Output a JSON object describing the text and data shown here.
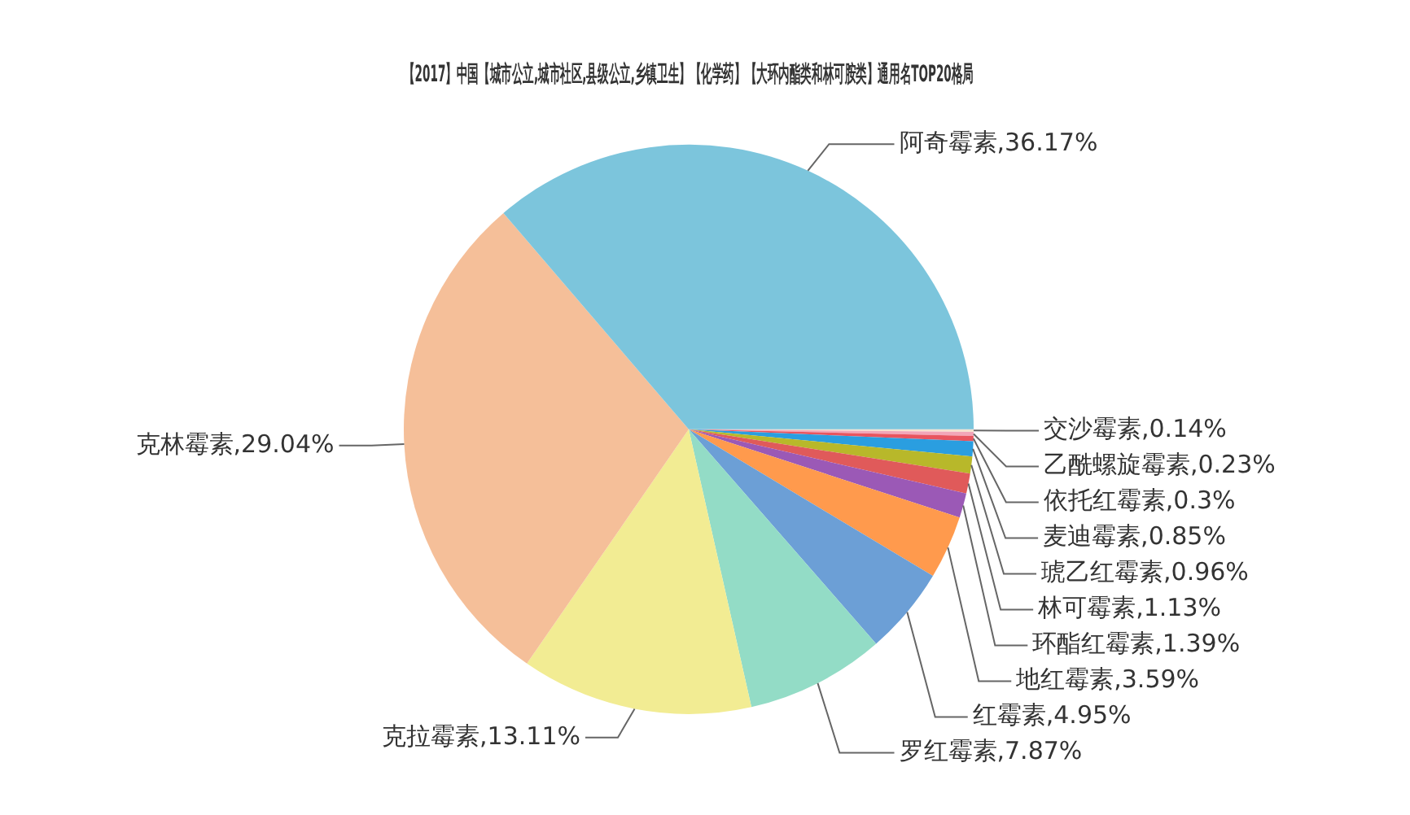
{
  "chart_data": {
    "type": "pie",
    "title": "【2017】中国【城市公立,城市社区,县级公立,乡镇卫生】【化学药】【大环内酯类和林可胺类】通用名TOP20格局",
    "categories": [
      "交沙霉素",
      "乙酰螺旋霉素",
      "依托红霉素",
      "麦迪霉素",
      "琥乙红霉素",
      "林可霉素",
      "环酯红霉素",
      "地红霉素",
      "红霉素",
      "罗红霉素",
      "克拉霉素",
      "克林霉素",
      "阿奇霉素"
    ],
    "values": [
      0.14,
      0.23,
      0.3,
      0.85,
      0.96,
      1.13,
      1.39,
      3.59,
      4.95,
      7.87,
      13.11,
      29.04,
      36.17
    ],
    "value_labels": [
      "0.14%",
      "0.23%",
      "0.3%",
      "0.85%",
      "0.96%",
      "1.13%",
      "1.39%",
      "3.59%",
      "4.95%",
      "7.87%",
      "13.11%",
      "29.04%",
      "36.17%"
    ],
    "colors": [
      "#f5e2cf",
      "#f2a6b8",
      "#e8555f",
      "#2a9ee0",
      "#b8b82a",
      "#e05a5a",
      "#9b59b6",
      "#ff9a4d",
      "#6c9fd6",
      "#93dcc6",
      "#f2ec93",
      "#f5bf99",
      "#7cc5dc"
    ],
    "legend": false
  }
}
